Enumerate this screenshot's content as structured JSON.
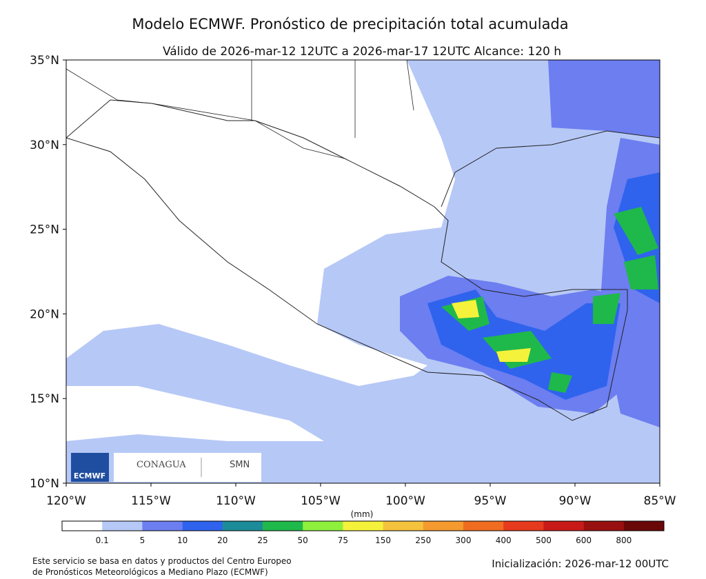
{
  "header": {
    "title": "Modelo ECMWF. Pronóstico de precipitación total acumulada",
    "subtitle": "Válido de 2026-mar-12 12UTC a 2026-mar-17 12UTC   Alcance: 120 h"
  },
  "map": {
    "lat_ticks": [
      "35°N",
      "30°N",
      "25°N",
      "20°N",
      "15°N",
      "10°N"
    ],
    "lon_ticks": [
      "120°W",
      "115°W",
      "110°W",
      "105°W",
      "100°W",
      "95°W",
      "90°W",
      "85°W"
    ]
  },
  "logos": {
    "ecmwf": "ECMWF",
    "conagua": "CONAGUA",
    "smn": "SMN"
  },
  "colorbar": {
    "unit": "(mm)",
    "labels": [
      "0.1",
      "5",
      "10",
      "20",
      "25",
      "50",
      "75",
      "150",
      "250",
      "300",
      "400",
      "500",
      "600",
      "800"
    ],
    "colors": [
      "#ffffff",
      "#b6c8f6",
      "#6c7ef0",
      "#2f63ee",
      "#1c8c98",
      "#1fb84b",
      "#8ef03c",
      "#f5f23b",
      "#f5c23e",
      "#f59a2e",
      "#f06c20",
      "#e63a1e",
      "#c81a18",
      "#991010",
      "#6a0808"
    ]
  },
  "footer": {
    "source_line1": "Este servicio se basa en datos y productos del Centro Europeo",
    "source_line2": "de Pronósticos Meteorológicos a Mediano Plazo (ECMWF)",
    "init": "Inicialización: 2026-mar-12 00UTC"
  }
}
